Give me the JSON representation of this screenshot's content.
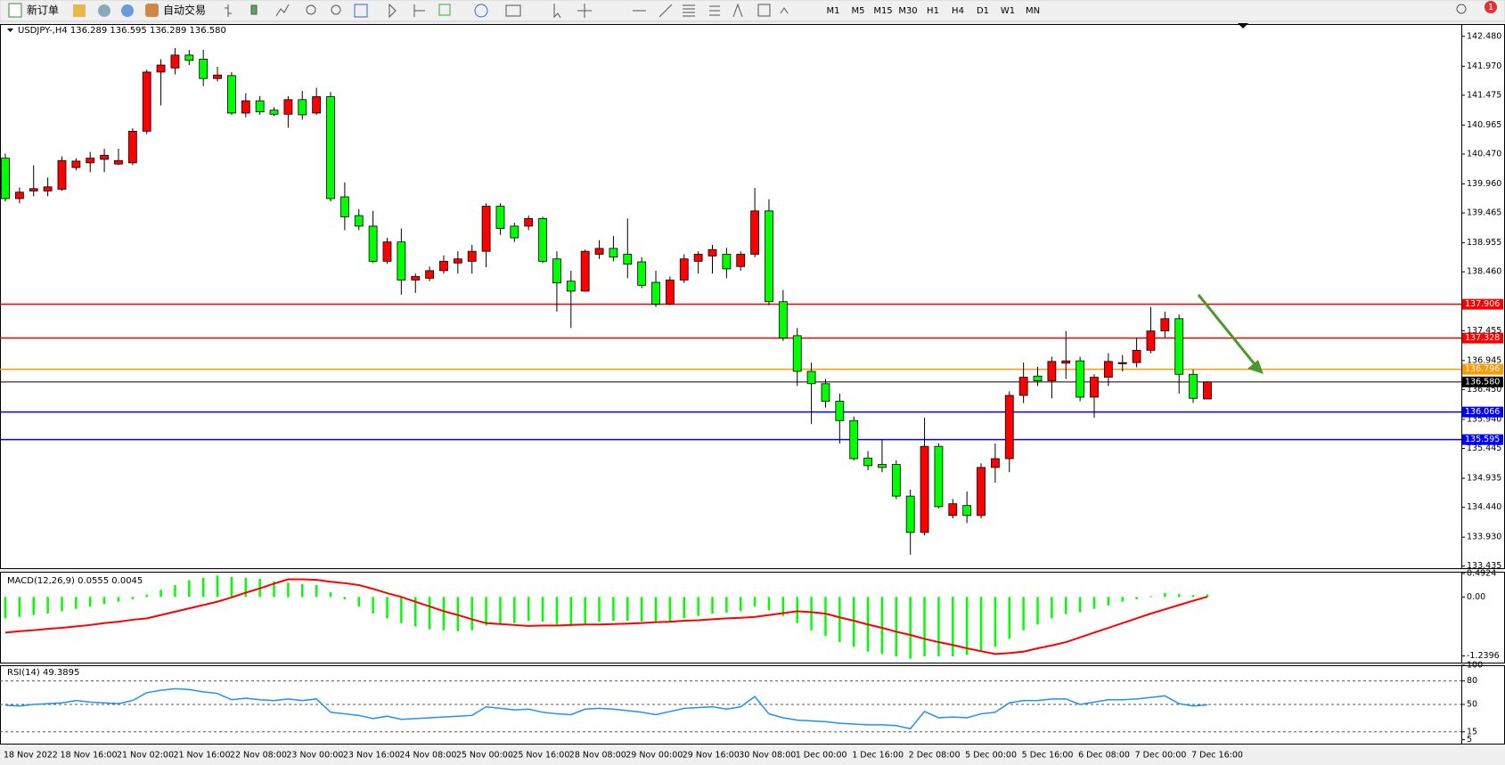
{
  "toolbar": {
    "new_order": "新订单",
    "auto_trading": "自动交易",
    "timeframes": [
      "M1",
      "M5",
      "M15",
      "M30",
      "H1",
      "H4",
      "D1",
      "W1",
      "MN"
    ],
    "notifications": "1"
  },
  "chart_data": [
    {
      "type": "candlestick",
      "title": "USDJPY-,H4  136.289 136.595 136.289 136.580",
      "up_color": "#ff0000",
      "down_color": "#00ff00",
      "categories": [
        "18 Nov 2022",
        null,
        null,
        null,
        "18 Nov 16:00",
        null,
        null,
        null,
        "21 Nov 02:00",
        null,
        null,
        null,
        "21 Nov 16:00",
        null,
        null,
        null,
        "22 Nov 08:00",
        null,
        null,
        null,
        "23 Nov 00:00",
        null,
        null,
        null,
        "23 Nov 16:00",
        null,
        null,
        null,
        "24 Nov 08:00",
        null,
        null,
        null,
        "25 Nov 00:00",
        null,
        null,
        null,
        "25 Nov 16:00",
        null,
        null,
        null,
        "28 Nov 08:00",
        null,
        null,
        null,
        "29 Nov 00:00",
        null,
        null,
        null,
        "29 Nov 16:00",
        null,
        null,
        null,
        "30 Nov 08:00",
        null,
        null,
        null,
        "1 Dec 00:00",
        null,
        null,
        null,
        "1 Dec 16:00",
        null,
        null,
        null,
        "2 Dec 08:00",
        null,
        null,
        null,
        "5 Dec 00:00",
        null,
        null,
        null,
        "5 Dec 16:00",
        null,
        null,
        null,
        "6 Dec 08:00",
        null,
        null,
        null,
        "7 Dec 00:00",
        null,
        null,
        null,
        "7 Dec 16:00",
        null
      ],
      "open": [
        140.4,
        139.71,
        139.84,
        139.84,
        139.87,
        140.24,
        140.32,
        140.38,
        140.3,
        140.32,
        140.86,
        141.87,
        141.94,
        142.16,
        142.09,
        141.76,
        141.81,
        141.17,
        141.38,
        141.22,
        141.15,
        141.4,
        141.17,
        141.45,
        139.74,
        139.42,
        139.24,
        138.64,
        138.97,
        138.32,
        138.35,
        138.48,
        138.61,
        138.64,
        138.81,
        139.58,
        139.24,
        139.24,
        139.37,
        138.68,
        138.3,
        138.13,
        138.76,
        138.86,
        138.76,
        138.63,
        138.28,
        137.91,
        138.32,
        138.64,
        138.73,
        138.76,
        138.55,
        138.76,
        139.5,
        137.95,
        137.37,
        136.76,
        136.55,
        136.25,
        135.92,
        135.28,
        135.17,
        135.17,
        134.63,
        134.01,
        135.48,
        134.3,
        134.47,
        134.3,
        135.12,
        135.27,
        136.35,
        136.68,
        136.6,
        136.9,
        136.94,
        136.32,
        136.66,
        136.89,
        136.91,
        137.12,
        137.45,
        137.66,
        136.71,
        136.289
      ],
      "high": [
        140.48,
        139.9,
        140.28,
        140.07,
        140.43,
        140.4,
        140.51,
        140.56,
        140.56,
        140.91,
        141.91,
        142.09,
        142.28,
        142.25,
        142.25,
        141.96,
        141.87,
        141.51,
        141.46,
        141.27,
        141.46,
        141.55,
        141.6,
        141.53,
        139.99,
        139.53,
        139.5,
        139.04,
        139.2,
        138.43,
        138.55,
        138.74,
        138.81,
        138.92,
        139.63,
        139.63,
        139.3,
        139.42,
        139.4,
        138.81,
        138.48,
        138.84,
        139.0,
        139.07,
        139.37,
        138.71,
        138.48,
        138.38,
        138.76,
        138.81,
        138.92,
        138.87,
        138.81,
        139.89,
        139.7,
        138.15,
        137.5,
        136.91,
        136.63,
        136.38,
        135.99,
        135.4,
        135.6,
        135.24,
        134.74,
        135.97,
        135.53,
        134.58,
        134.71,
        135.19,
        135.53,
        136.42,
        136.91,
        136.84,
        137.01,
        137.45,
        137.01,
        136.71,
        137.07,
        137.04,
        137.33,
        137.86,
        137.78,
        137.73,
        136.79,
        136.595
      ],
      "low": [
        139.66,
        139.63,
        139.75,
        139.75,
        139.84,
        140.19,
        140.16,
        140.16,
        140.28,
        140.28,
        140.81,
        141.3,
        141.83,
        141.99,
        141.63,
        141.71,
        141.14,
        141.1,
        141.14,
        141.12,
        140.92,
        141.06,
        141.14,
        139.66,
        139.17,
        139.17,
        138.61,
        138.6,
        138.07,
        138.1,
        138.3,
        138.43,
        138.43,
        138.43,
        138.54,
        139.09,
        138.97,
        139.17,
        138.61,
        137.78,
        137.5,
        138.12,
        138.68,
        138.64,
        138.35,
        138.18,
        137.86,
        137.89,
        138.27,
        138.43,
        138.43,
        138.35,
        138.48,
        138.71,
        137.89,
        137.28,
        136.51,
        135.86,
        136.14,
        135.53,
        135.24,
        135.07,
        135.04,
        134.58,
        133.63,
        133.96,
        134.42,
        134.25,
        134.17,
        134.25,
        134.86,
        135.04,
        136.22,
        136.51,
        136.3,
        136.63,
        136.25,
        135.97,
        136.51,
        136.76,
        136.83,
        137.07,
        137.33,
        136.38,
        136.22,
        136.289
      ],
      "close": [
        139.71,
        139.82,
        139.88,
        139.91,
        140.36,
        140.35,
        140.4,
        140.45,
        140.36,
        140.86,
        141.87,
        141.99,
        142.16,
        142.07,
        141.76,
        141.82,
        141.17,
        141.38,
        141.19,
        141.15,
        141.4,
        141.14,
        141.45,
        139.71,
        139.4,
        139.24,
        138.64,
        138.97,
        138.32,
        138.38,
        138.48,
        138.64,
        138.68,
        138.81,
        139.58,
        139.2,
        139.04,
        139.37,
        138.64,
        138.27,
        138.13,
        138.81,
        138.86,
        138.71,
        138.59,
        138.23,
        137.91,
        138.32,
        138.68,
        138.76,
        138.84,
        138.51,
        138.76,
        139.5,
        137.95,
        137.33,
        136.76,
        136.55,
        136.25,
        135.92,
        135.27,
        135.15,
        135.12,
        134.63,
        134.01,
        135.48,
        134.45,
        134.5,
        134.3,
        135.12,
        135.27,
        136.35,
        136.66,
        136.6,
        136.93,
        136.94,
        136.32,
        136.66,
        136.93,
        136.91,
        137.12,
        137.45,
        137.66,
        136.71,
        136.3,
        136.58
      ],
      "ylim": [
        133.4,
        142.69
      ],
      "yticks": [
        {
          "value": 142.48,
          "label": "142.480"
        },
        {
          "value": 141.97,
          "label": "141.970"
        },
        141.475,
        140.965,
        {
          "value": 140.47,
          "label": "140.470"
        },
        {
          "value": 139.96,
          "label": "139.960"
        },
        139.465,
        138.955,
        {
          "value": 138.46,
          "label": "138.460"
        },
        137.455,
        136.945,
        {
          "value": 136.45,
          "label": "136.450"
        },
        {
          "value": 135.94,
          "label": "135.940"
        },
        135.445,
        134.935,
        {
          "value": 134.44,
          "label": "134.440"
        },
        {
          "value": 133.93,
          "label": "133.930"
        },
        133.435
      ],
      "hlines": [
        {
          "value": 137.906,
          "label": "137.906",
          "color": "#ff0000"
        },
        {
          "value": 137.328,
          "label": "137.328",
          "color": "#ff0000"
        },
        {
          "value": 136.796,
          "label": "136.796",
          "color": "#ff9900"
        },
        {
          "value": 136.58,
          "label": "136.580",
          "color": "#000000"
        },
        {
          "value": 136.066,
          "label": "136.066",
          "color": "#0000ff"
        },
        {
          "value": 135.595,
          "label": "135.595",
          "color": "#0000ff"
        }
      ]
    },
    {
      "type": "macd",
      "title": "MACD(12,26,9) 0.0555 0.0045",
      "histogram": {
        "color": "#00ff00",
        "values": [
          -0.45,
          -0.42,
          -0.38,
          -0.35,
          -0.3,
          -0.25,
          -0.2,
          -0.15,
          -0.1,
          -0.05,
          0.05,
          0.15,
          0.25,
          0.35,
          0.4,
          0.45,
          0.42,
          0.4,
          0.38,
          0.33,
          0.3,
          0.27,
          0.25,
          0.1,
          -0.05,
          -0.2,
          -0.35,
          -0.45,
          -0.55,
          -0.62,
          -0.68,
          -0.7,
          -0.72,
          -0.7,
          -0.6,
          -0.58,
          -0.55,
          -0.5,
          -0.52,
          -0.58,
          -0.62,
          -0.58,
          -0.52,
          -0.5,
          -0.5,
          -0.52,
          -0.55,
          -0.52,
          -0.45,
          -0.4,
          -0.35,
          -0.33,
          -0.3,
          -0.2,
          -0.28,
          -0.4,
          -0.55,
          -0.7,
          -0.82,
          -0.95,
          -1.05,
          -1.15,
          -1.2,
          -1.25,
          -1.3,
          -1.25,
          -1.25,
          -1.25,
          -1.22,
          -1.15,
          -1.05,
          -0.88,
          -0.7,
          -0.58,
          -0.45,
          -0.36,
          -0.32,
          -0.25,
          -0.18,
          -0.1,
          -0.05,
          0.02,
          0.08,
          0.06,
          0.04,
          0.0555
        ]
      },
      "signal": {
        "color": "#ff0000",
        "values": [
          -0.75,
          -0.72,
          -0.7,
          -0.67,
          -0.65,
          -0.62,
          -0.59,
          -0.55,
          -0.52,
          -0.48,
          -0.45,
          -0.38,
          -0.31,
          -0.24,
          -0.17,
          -0.1,
          -0.01,
          0.09,
          0.18,
          0.28,
          0.37,
          0.37,
          0.36,
          0.32,
          0.29,
          0.25,
          0.17,
          0.08,
          0.0,
          -0.1,
          -0.2,
          -0.3,
          -0.38,
          -0.47,
          -0.55,
          -0.57,
          -0.59,
          -0.61,
          -0.6,
          -0.6,
          -0.59,
          -0.58,
          -0.58,
          -0.57,
          -0.56,
          -0.55,
          -0.53,
          -0.52,
          -0.5,
          -0.49,
          -0.47,
          -0.45,
          -0.44,
          -0.42,
          -0.38,
          -0.34,
          -0.3,
          -0.32,
          -0.35,
          -0.43,
          -0.5,
          -0.58,
          -0.65,
          -0.73,
          -0.8,
          -0.88,
          -0.95,
          -1.01,
          -1.08,
          -1.14,
          -1.2,
          -1.18,
          -1.15,
          -1.08,
          -1.02,
          -0.95,
          -0.85,
          -0.75,
          -0.65,
          -0.55,
          -0.45,
          -0.35,
          -0.26,
          -0.17,
          -0.08,
          0.0045
        ]
      },
      "ylim": [
        -1.38,
        0.53
      ],
      "yticks": [
        0.4924,
        {
          "value": 0,
          "label": "0.00"
        },
        -1.2396
      ]
    },
    {
      "type": "line",
      "title": "RSI(14) 49.3895",
      "color": "#1e90ff",
      "values": [
        49,
        48,
        50,
        51,
        52,
        55,
        53,
        52,
        51,
        55,
        65,
        68,
        70,
        69,
        66,
        64,
        56,
        58,
        56,
        55,
        57,
        55,
        57,
        40,
        38,
        36,
        32,
        35,
        31,
        32,
        33,
        34,
        35,
        36,
        47,
        45,
        43,
        44,
        40,
        38,
        37,
        44,
        45,
        44,
        42,
        40,
        37,
        41,
        45,
        46,
        47,
        44,
        47,
        60,
        38,
        33,
        30,
        29,
        28,
        26,
        25,
        24,
        24,
        23,
        19,
        41,
        33,
        34,
        33,
        38,
        40,
        52,
        55,
        55,
        57,
        57,
        50,
        53,
        56,
        56,
        57,
        59,
        61,
        51,
        48,
        49.3895
      ],
      "ylim": [
        0,
        100
      ],
      "yticks": [
        100,
        80,
        50,
        15,
        5
      ],
      "levels": [
        80,
        50,
        15
      ]
    }
  ]
}
